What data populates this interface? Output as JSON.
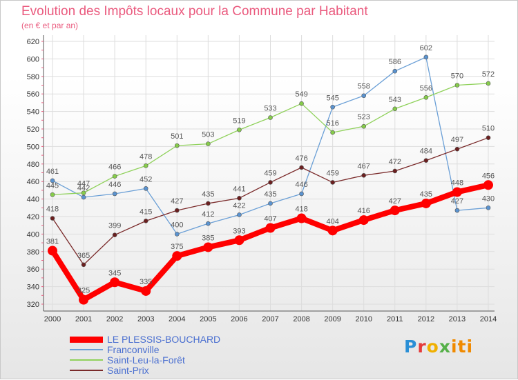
{
  "chart_data": {
    "type": "line",
    "title": "Evolution des Impôts locaux pour la Commune par Habitant",
    "subtitle": "(en € et par an)",
    "xlabel": "",
    "ylabel": "",
    "x": [
      "2000",
      "2001",
      "2002",
      "2003",
      "2004",
      "2005",
      "2006",
      "2007",
      "2008",
      "2009",
      "2010",
      "2011",
      "2012",
      "2013",
      "2014"
    ],
    "ylim": [
      320,
      620
    ],
    "yticks": [
      320,
      340,
      360,
      380,
      400,
      420,
      440,
      460,
      480,
      500,
      520,
      540,
      560,
      580,
      600,
      620
    ],
    "series": [
      {
        "name": "LE PLESSIS-BOUCHARD",
        "color": "#ff0000",
        "values": [
          381,
          325,
          345,
          335,
          375,
          385,
          393,
          407,
          418,
          404,
          416,
          427,
          435,
          448,
          456
        ]
      },
      {
        "name": "Franconville",
        "color": "#6a9fd6",
        "values": [
          461,
          442,
          446,
          452,
          400,
          412,
          422,
          435,
          446,
          545,
          558,
          586,
          602,
          427,
          430
        ]
      },
      {
        "name": "Saint-Leu-la-Forêt",
        "color": "#8fd15a",
        "values": [
          445,
          447,
          466,
          478,
          501,
          503,
          519,
          533,
          549,
          516,
          523,
          543,
          556,
          570,
          572
        ]
      },
      {
        "name": "Saint-Prix",
        "color": "#7a2a2a",
        "values": [
          418,
          365,
          399,
          415,
          427,
          435,
          441,
          459,
          476,
          459,
          467,
          472,
          484,
          497,
          510
        ]
      }
    ],
    "legend": "bottom-left"
  },
  "brand": {
    "parts": [
      "P",
      "r",
      "o",
      "x",
      "iti"
    ]
  }
}
